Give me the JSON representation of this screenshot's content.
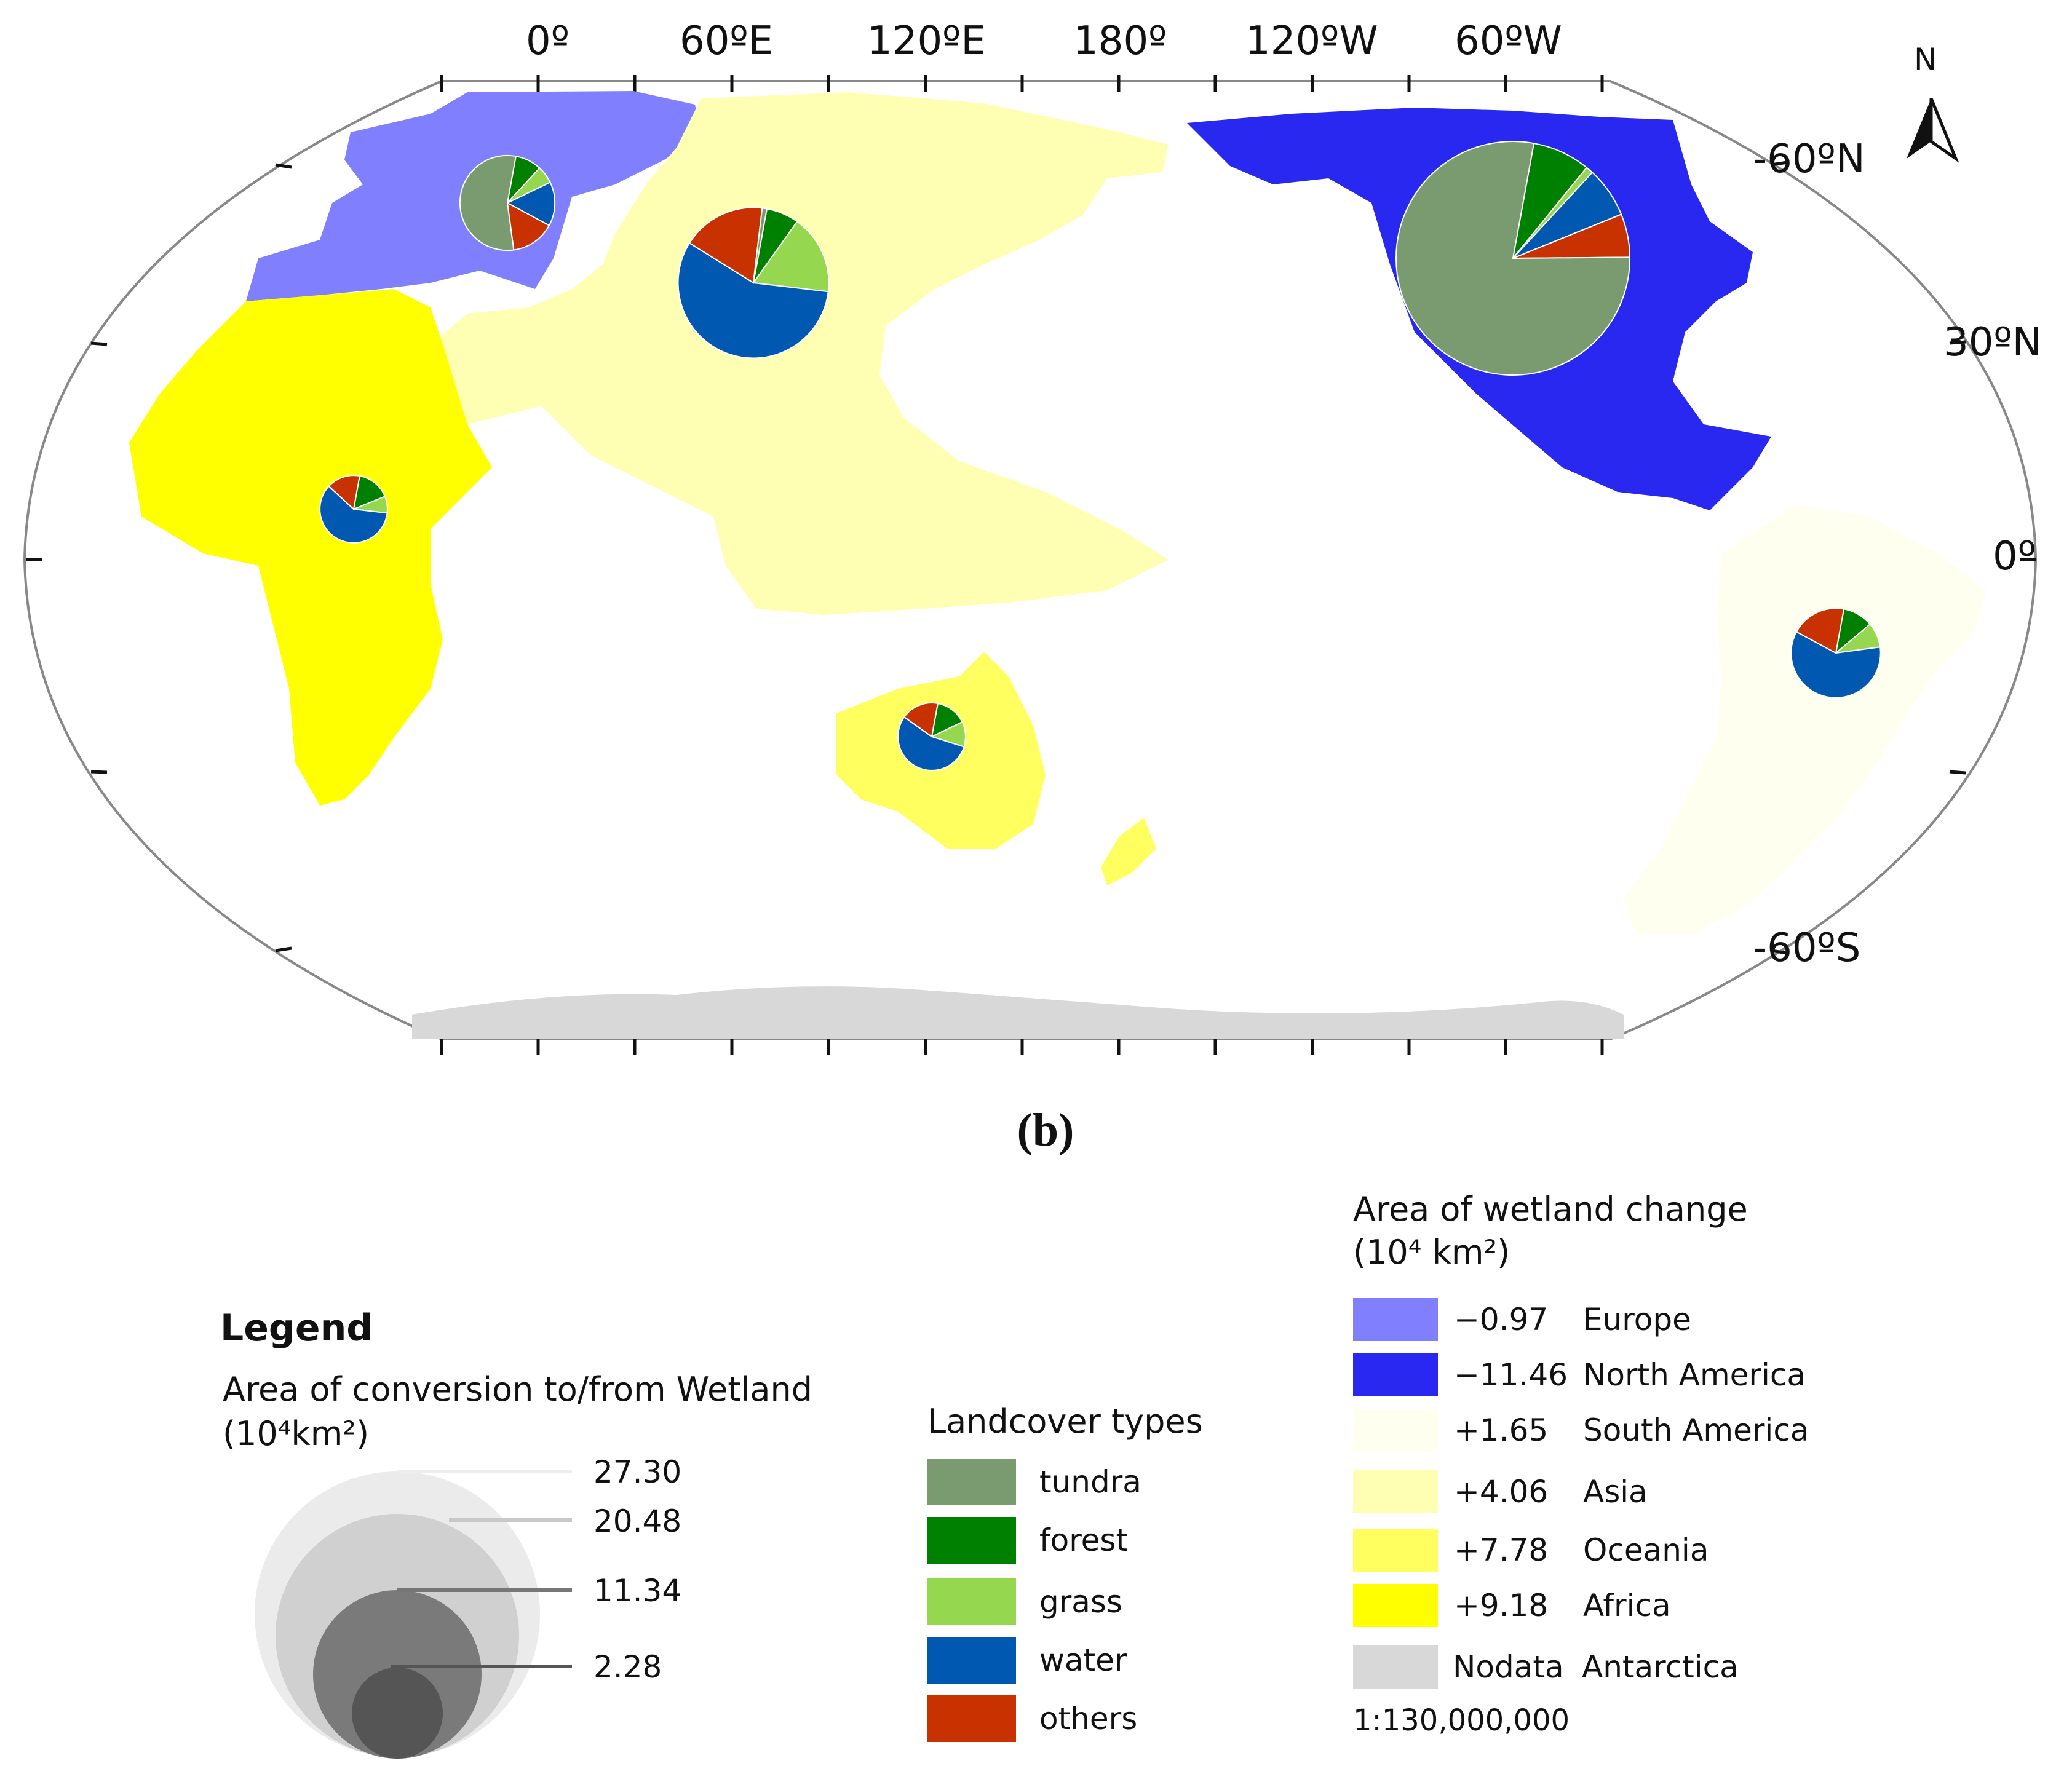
{
  "map": {
    "longitude_labels": [
      "0º",
      "60ºE",
      "120ºE",
      "180º",
      "120ºW",
      "60ºW"
    ],
    "latitude_labels": [
      "-60ºN",
      "30ºN",
      "0º",
      "-60ºS"
    ],
    "north_arrow_label": "N",
    "panel_label": "(b)",
    "scale": "1:130,000,000"
  },
  "legend": {
    "title": "Legend",
    "conversion_title": "Area of conversion to/from Wetland",
    "conversion_unit": "(10⁴km²)",
    "size_values": [
      27.3,
      20.48,
      11.34,
      2.28
    ],
    "size_labels": [
      "27.30",
      "20.48",
      "11.34",
      "2.28"
    ],
    "size_colors": [
      "#ebebeb",
      "#d0d0d0",
      "#7a7a7a",
      "#555555"
    ]
  },
  "landcover": {
    "title": "Landcover types",
    "types": [
      {
        "name": "tundra",
        "color": "#7a9a70"
      },
      {
        "name": "forest",
        "color": "#008000"
      },
      {
        "name": "grass",
        "color": "#96d750"
      },
      {
        "name": "water",
        "color": "#0058b0"
      },
      {
        "name": "others",
        "color": "#c83200"
      }
    ]
  },
  "wetland_change": {
    "title": "Area of wetland change",
    "unit": "(10⁴ km²)",
    "rows": [
      {
        "value": "−0.97",
        "region": "Europe",
        "color": "#8080ff"
      },
      {
        "value": "−11.46",
        "region": "North America",
        "color": "#2828f0"
      },
      {
        "value": "+1.65",
        "region": "South America",
        "color": "#fffff0"
      },
      {
        "value": "+4.06",
        "region": "Asia",
        "color": "#ffffb3"
      },
      {
        "value": "+7.78",
        "region": "Oceania",
        "color": "#ffff60"
      },
      {
        "value": "+9.18",
        "region": "Africa",
        "color": "#ffff00"
      },
      {
        "value": "Nodata",
        "region": "Antarctica",
        "color": "#d8d8d8"
      }
    ]
  },
  "chart_data": {
    "type": "pie",
    "categories": [
      "tundra",
      "forest",
      "grass",
      "water",
      "others"
    ],
    "pies": [
      {
        "region": "North America",
        "total": 27.3,
        "fractions": [
          0.78,
          0.08,
          0.01,
          0.07,
          0.06
        ]
      },
      {
        "region": "Asia",
        "total": 11.34,
        "fractions": [
          0.01,
          0.07,
          0.17,
          0.57,
          0.18
        ]
      },
      {
        "region": "Europe",
        "total": 4.5,
        "fractions": [
          0.55,
          0.09,
          0.06,
          0.15,
          0.15
        ]
      },
      {
        "region": "South America",
        "total": 4.0,
        "fractions": [
          0.0,
          0.11,
          0.09,
          0.6,
          0.2
        ]
      },
      {
        "region": "Africa",
        "total": 2.28,
        "fractions": [
          0.0,
          0.16,
          0.08,
          0.6,
          0.16
        ]
      },
      {
        "region": "Oceania",
        "total": 2.28,
        "fractions": [
          0.0,
          0.15,
          0.12,
          0.55,
          0.18
        ]
      }
    ]
  }
}
